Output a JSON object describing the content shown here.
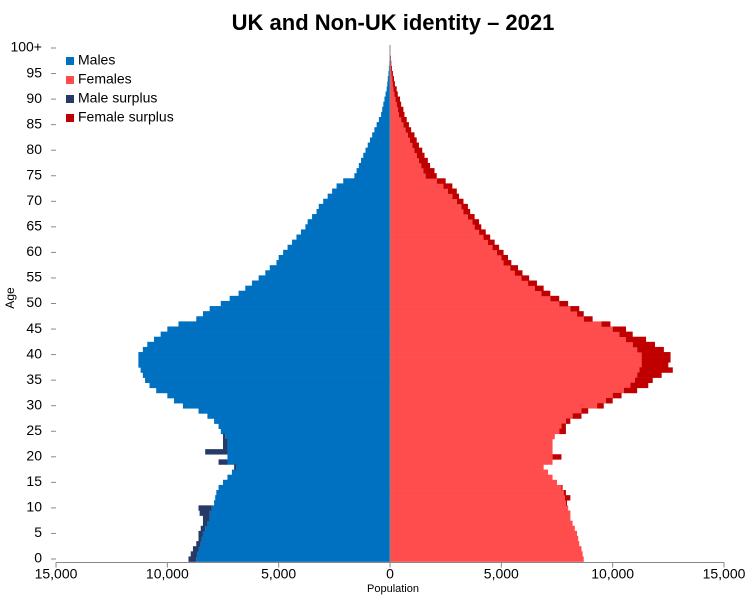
{
  "chart_data": {
    "type": "pyramid",
    "title": "UK and Non-UK identity – 2021",
    "x_label": "Population",
    "y_label": "Age",
    "categories": [
      "0",
      null,
      null,
      null,
      null,
      "5",
      null,
      null,
      null,
      null,
      "10",
      null,
      null,
      null,
      null,
      "15",
      null,
      null,
      null,
      null,
      "20",
      null,
      null,
      null,
      null,
      "25",
      null,
      null,
      null,
      null,
      "30",
      null,
      null,
      null,
      null,
      "35",
      null,
      null,
      null,
      null,
      "40",
      null,
      null,
      null,
      null,
      "45",
      null,
      null,
      null,
      null,
      "50",
      null,
      null,
      null,
      null,
      "55",
      null,
      null,
      null,
      null,
      "60",
      null,
      null,
      null,
      null,
      "65",
      null,
      null,
      null,
      null,
      "70",
      null,
      null,
      null,
      null,
      "75",
      null,
      null,
      null,
      null,
      "80",
      null,
      null,
      null,
      null,
      "85",
      null,
      null,
      null,
      null,
      "90",
      null,
      null,
      null,
      null,
      "95",
      null,
      null,
      null,
      null,
      "100+"
    ],
    "xlim": [
      -15000,
      15000
    ],
    "xticks": [
      {
        "value": -15000,
        "label": "15,000"
      },
      {
        "value": -10000,
        "label": "10,000"
      },
      {
        "value": -5000,
        "label": "5,000"
      },
      0,
      {
        "value": 5000,
        "label": "5,000"
      },
      {
        "value": 10000,
        "label": "10,000"
      },
      {
        "value": 15000,
        "label": "15,000"
      }
    ],
    "series": [
      {
        "name": "Males",
        "color": "#0070c0",
        "side": "left",
        "values": [
          8700,
          8650,
          8600,
          8500,
          8450,
          8400,
          8300,
          8200,
          8100,
          8100,
          8000,
          7900,
          7850,
          7800,
          7700,
          7500,
          7300,
          7100,
          6900,
          7300,
          7300,
          7300,
          7300,
          7300,
          7400,
          7600,
          7700,
          7900,
          8200,
          8600,
          9300,
          9700,
          10000,
          10500,
          10800,
          11000,
          11100,
          11200,
          11300,
          11300,
          11300,
          11100,
          10900,
          10600,
          10300,
          10000,
          9500,
          8700,
          8400,
          8100,
          7600,
          7200,
          6800,
          6500,
          6200,
          5900,
          5600,
          5400,
          5100,
          5000,
          4800,
          4600,
          4400,
          4200,
          4000,
          3800,
          3700,
          3500,
          3300,
          3200,
          3000,
          2800,
          2600,
          2400,
          2100,
          1600,
          1500,
          1400,
          1300,
          1200,
          1100,
          1000,
          900,
          800,
          700,
          600,
          500,
          400,
          350,
          300,
          250,
          200,
          150,
          120,
          100,
          70,
          50,
          30,
          20,
          10,
          10
        ]
      },
      {
        "name": "Females",
        "color": "#ff4d4d",
        "side": "right",
        "values": [
          8700,
          8650,
          8600,
          8500,
          8450,
          8400,
          8300,
          8200,
          8100,
          8100,
          8000,
          7900,
          7850,
          7800,
          7700,
          7500,
          7300,
          7100,
          6900,
          7300,
          7300,
          7300,
          7300,
          7300,
          7400,
          7600,
          7700,
          7900,
          8200,
          8600,
          9300,
          9700,
          10000,
          10500,
          10800,
          11000,
          11100,
          11200,
          11300,
          11300,
          11300,
          11100,
          10900,
          10600,
          10300,
          10000,
          9500,
          8700,
          8400,
          8100,
          7600,
          7200,
          6800,
          6500,
          6200,
          5900,
          5600,
          5400,
          5100,
          5000,
          4800,
          4600,
          4400,
          4200,
          4000,
          3800,
          3700,
          3500,
          3300,
          3200,
          3000,
          2800,
          2600,
          2400,
          2100,
          1600,
          1500,
          1400,
          1300,
          1200,
          1100,
          1000,
          900,
          800,
          700,
          600,
          500,
          400,
          350,
          300,
          250,
          200,
          150,
          120,
          100,
          70,
          50,
          30,
          20,
          10,
          10
        ]
      },
      {
        "name": "Male surplus",
        "color": "#253a66",
        "side": "left",
        "stack": 0,
        "values": [
          350,
          300,
          250,
          200,
          150,
          200,
          200,
          200,
          300,
          450,
          600,
          0,
          0,
          0,
          0,
          0,
          0,
          0,
          100,
          400,
          0,
          1000,
          200,
          200,
          100,
          0,
          0,
          0,
          0,
          0,
          0,
          0,
          0,
          0,
          0,
          0,
          0,
          0,
          0,
          0,
          0,
          0,
          0,
          0,
          0,
          0,
          0,
          0,
          0,
          0,
          0,
          0,
          0,
          0,
          0,
          0,
          0,
          0,
          0,
          0,
          0,
          0,
          0,
          0,
          0,
          0,
          0,
          0,
          0,
          0,
          0,
          0,
          0,
          0,
          0,
          0,
          0,
          0,
          0,
          0,
          0,
          0,
          0,
          0,
          0,
          0,
          0,
          0,
          0,
          0,
          0,
          0,
          0,
          0,
          0,
          0,
          0,
          0,
          0,
          0,
          0
        ]
      },
      {
        "name": "Female surplus",
        "color": "#c00000",
        "side": "right",
        "stack": 1,
        "values": [
          0,
          0,
          0,
          0,
          0,
          0,
          0,
          0,
          0,
          0,
          0,
          50,
          250,
          100,
          50,
          0,
          0,
          0,
          0,
          0,
          400,
          0,
          0,
          0,
          0,
          300,
          200,
          200,
          400,
          300,
          300,
          300,
          400,
          600,
          800,
          800,
          1100,
          1500,
          1200,
          1300,
          1300,
          1200,
          1000,
          900,
          600,
          600,
          400,
          400,
          300,
          400,
          400,
          400,
          400,
          400,
          400,
          350,
          350,
          350,
          350,
          300,
          300,
          300,
          300,
          300,
          300,
          300,
          300,
          300,
          300,
          300,
          300,
          300,
          400,
          400,
          400,
          500,
          500,
          400,
          400,
          350,
          350,
          300,
          300,
          300,
          250,
          250,
          250,
          250,
          250,
          200,
          200,
          150,
          150,
          100,
          80,
          60,
          40,
          30,
          20,
          10,
          10
        ]
      }
    ]
  }
}
